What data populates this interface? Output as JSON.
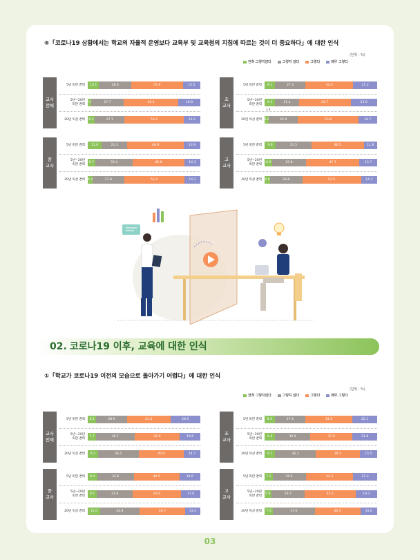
{
  "q1": {
    "title": "⑥「코로나19 상황에서는 학교의 자율적 운영보다 교육부 및 교육청의 지침에 따르는 것이 더 중요하다」에 대한 인식"
  },
  "section02": {
    "num": "02.",
    "title": "코로나19 이후, 교육에 대한 인식"
  },
  "q2": {
    "title": "①「학교가 코로나19 이전의 모습으로 돌아가기 어렵다」에 대한 인식"
  },
  "unit": "(단위 : %)",
  "legend": [
    "전혀 그렇지않다",
    "그렇지 않다",
    "그렇다",
    "매우 그렇다"
  ],
  "colors": {
    "c1": "#8cc35a",
    "c2": "#a09892",
    "c3": "#f7915a",
    "c4": "#8b8fcc",
    "label_bg": "#6d6a68",
    "accent": "#8cc35a"
  },
  "row_labels": [
    "5년 미만 경력",
    "5년~20년\n미만 경력",
    "20년 이상 경력"
  ],
  "panels1": [
    {
      "name": "교사\n전체",
      "rows": [
        [
          10.1,
          28.6,
          45.9,
          15.5
        ],
        [
          2.9,
          27.7,
          46.4,
          18.8
        ],
        [
          6.3,
          27.1,
          53.2,
          15.2
        ]
      ]
    },
    {
      "name": "초\n교사",
      "rows": [
        [
          9.1,
          27.3,
          42.4,
          21.2
        ],
        [
          9.3,
          21.4,
          45.7,
          23.6
        ],
        [
          3.8,
          25.9,
          53.6,
          16.7
        ]
      ],
      "note": "3.8"
    },
    {
      "name": "중\n교사",
      "rows": [
        [
          11.6,
          21.3,
          46.9,
          13.9
        ],
        [
          6.7,
          33.4,
          45.6,
          14.3
        ],
        [
          4.4,
          27.8,
          53.4,
          14.3
        ]
      ]
    },
    {
      "name": "고\n교사",
      "rows": [
        [
          9.8,
          31.5,
          46.5,
          11.8
        ],
        [
          6.9,
          29.8,
          47.7,
          15.7
        ],
        [
          4.8,
          28.8,
          52.5,
          14.3
        ]
      ]
    }
  ],
  "panels2": [
    {
      "name": "교사\n전체",
      "rows": [
        [
          8.2,
          28.9,
          41.4,
          28.5
        ],
        [
          7.7,
          36.7,
          42.9,
          19.6
        ],
        [
          9.1,
          36.1,
          40.0,
          14.7
        ]
      ]
    },
    {
      "name": "초\n교사",
      "rows": [
        [
          8.9,
          27.4,
          41.6,
          22.1
        ],
        [
          9.4,
          30.9,
          37.9,
          21.8
        ],
        [
          9.1,
          36.3,
          39.1,
          15.5
        ]
      ]
    },
    {
      "name": "중\n교사",
      "rows": [
        [
          8.4,
          32.6,
          40.5,
          18.6
        ],
        [
          8.1,
          31.8,
          43.0,
          17.0
        ],
        [
          11.0,
          34.9,
          40.7,
          13.4
        ]
      ]
    },
    {
      "name": "고\n교사",
      "rows": [
        [
          7.1,
          29.5,
          42.3,
          21.2
        ],
        [
          5.9,
          29.7,
          45.2,
          19.3
        ],
        [
          7.5,
          37.0,
          40.5,
          15.0
        ]
      ]
    }
  ],
  "page_number": "03"
}
